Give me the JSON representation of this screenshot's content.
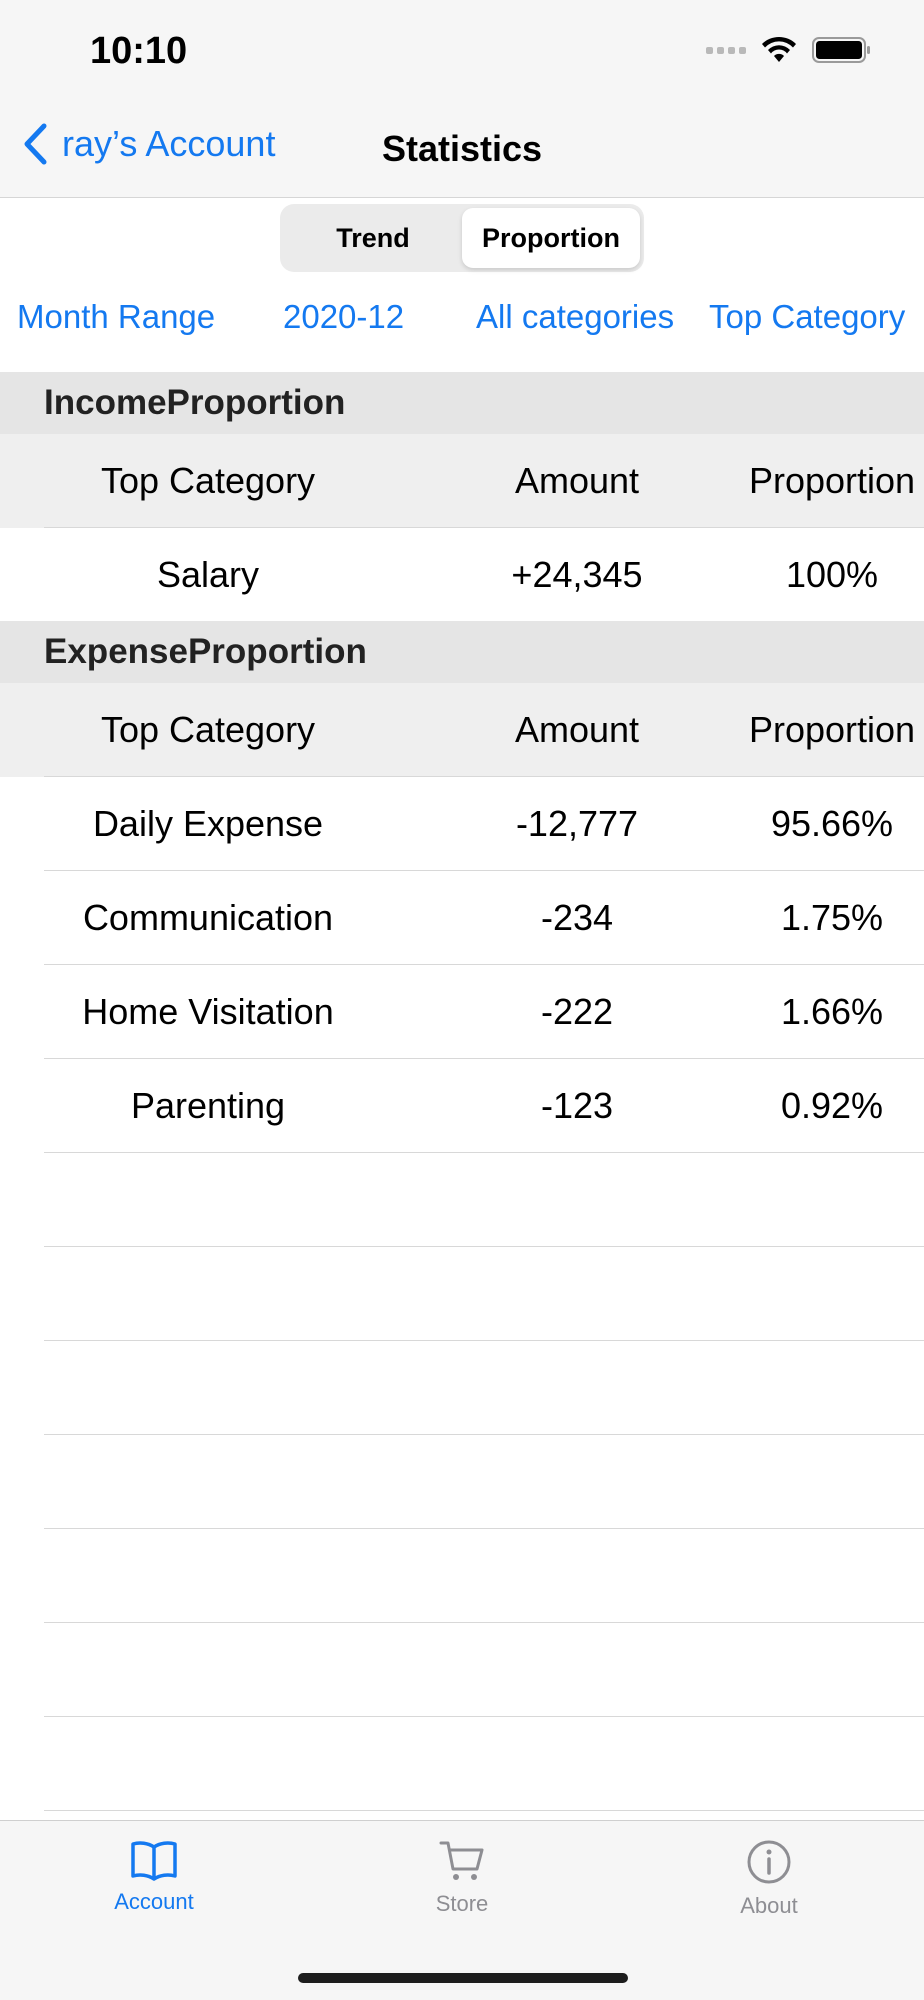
{
  "status": {
    "time": "10:10"
  },
  "nav": {
    "back_label": "ray’s Account",
    "title": "Statistics"
  },
  "segmented": {
    "trend": "Trend",
    "proportion": "Proportion"
  },
  "filters": {
    "month_range": "Month Range",
    "month": "2020-12",
    "categories": "All categories",
    "top_category": "Top Category"
  },
  "income": {
    "title": "IncomeProportion",
    "headers": [
      "Top Category",
      "Amount",
      "Proportion"
    ],
    "rows": [
      {
        "category": "Salary",
        "amount": "+24,345",
        "proportion": "100%"
      }
    ]
  },
  "expense": {
    "title": "ExpenseProportion",
    "headers": [
      "Top Category",
      "Amount",
      "Proportion"
    ],
    "rows": [
      {
        "category": "Daily Expense",
        "amount": "-12,777",
        "proportion": "95.66%"
      },
      {
        "category": "Communication",
        "amount": "-234",
        "proportion": "1.75%"
      },
      {
        "category": "Home Visitation",
        "amount": "-222",
        "proportion": "1.66%"
      },
      {
        "category": "Parenting",
        "amount": "-123",
        "proportion": "0.92%"
      }
    ]
  },
  "tabs": {
    "account": "Account",
    "store": "Store",
    "about": "About"
  },
  "colors": {
    "accent": "#1479f0",
    "inactive": "#8e8e93"
  },
  "icons": {
    "back": "chevron-left-icon",
    "account": "book-icon",
    "store": "cart-icon",
    "about": "info-icon"
  }
}
